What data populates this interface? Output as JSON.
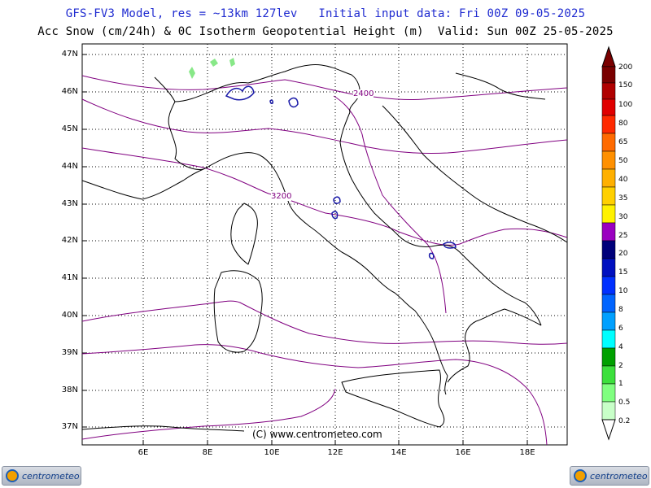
{
  "header": {
    "line1": "GFS-FV3 Model, res = ~13km 127lev   Initial input data: Fri 00Z 09-05-2025",
    "line2": "Acc Snow (cm/24h) & 0C Isotherm Geopotential Height (m)  Valid: Sun 00Z 25-05-2025"
  },
  "map": {
    "lat_labels": [
      "47N",
      "46N",
      "45N",
      "44N",
      "43N",
      "42N",
      "41N",
      "40N",
      "39N",
      "38N",
      "37N"
    ],
    "lon_labels": [
      "6E",
      "8E",
      "10E",
      "12E",
      "14E",
      "16E",
      "18E"
    ],
    "contour_labels": [
      "2400",
      "3200"
    ],
    "copyright": "(C) www.centrometeo.com",
    "colors": {
      "coast": "#000000",
      "isotherm": "#800080",
      "snow": "#1a1aa8",
      "grid": "#000000"
    }
  },
  "legend": {
    "labels": [
      "200",
      "150",
      "100",
      "80",
      "65",
      "50",
      "40",
      "35",
      "30",
      "25",
      "20",
      "15",
      "10",
      "8",
      "6",
      "4",
      "2",
      "1",
      "0.5",
      "0.2"
    ],
    "colors": [
      "#7a0000",
      "#b00000",
      "#e00000",
      "#ff2a00",
      "#ff6a00",
      "#ff9000",
      "#ffb000",
      "#ffd000",
      "#fff200",
      "#9a00c0",
      "#00007a",
      "#0010c0",
      "#0030ff",
      "#0064ff",
      "#00a0ff",
      "#00ffff",
      "#00a000",
      "#3ce03c",
      "#80ff80",
      "#c8ffc8"
    ]
  },
  "logos": {
    "left_text": "centrometeo",
    "right_text": "centrometeo"
  }
}
